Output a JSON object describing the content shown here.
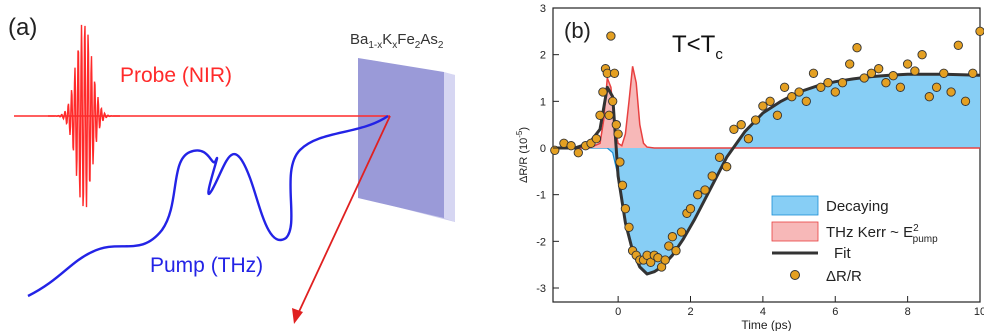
{
  "panel_a": {
    "label": "(a)",
    "material": "Ba1-xKxFe2As2",
    "material_parts": [
      {
        "t": "Ba",
        "s": "n"
      },
      {
        "t": "1-x",
        "s": "sub"
      },
      {
        "t": "K",
        "s": "n"
      },
      {
        "t": "x",
        "s": "sub"
      },
      {
        "t": "Fe",
        "s": "n"
      },
      {
        "t": "2",
        "s": "sub"
      },
      {
        "t": "As",
        "s": "n"
      },
      {
        "t": "2",
        "s": "sub"
      }
    ],
    "probe_label": "Probe (NIR)",
    "pump_label": "Pump (THz)",
    "colors": {
      "probe": "#ff2a2a",
      "pump": "#2323e6",
      "sample": "#9a9ad8",
      "arrow": "#e02020"
    }
  },
  "panel_b": {
    "label": "(b)",
    "condition_main": "T<T",
    "condition_sub": "c"
  },
  "chart_data": {
    "type": "scatter",
    "xlabel": "Time (ps)",
    "ylabel": "ΔR/R (10⁻⁵)",
    "ylabel_main": "ΔR/R (10",
    "ylabel_sup": "-5",
    "ylabel_close": ")",
    "xlim": [
      -1.8,
      10
    ],
    "ylim": [
      -3.3,
      3
    ],
    "xticks": [
      0,
      2,
      4,
      6,
      8,
      10
    ],
    "xtick_labels": [
      "0",
      "2",
      "4",
      "6",
      "8",
      "10"
    ],
    "yticks": [
      -3,
      -2,
      -1,
      0,
      1,
      2,
      3
    ],
    "ytick_labels": [
      "-3",
      "-2",
      "-1",
      "0",
      "1",
      "2",
      "3"
    ],
    "grid": false,
    "legend_position": "lower-right",
    "legend": {
      "decaying": "Decaying",
      "thz_kerr": "THz Kerr ~ E",
      "thz_kerr_sup": "2",
      "thz_kerr_sub": "pump",
      "fit": "Fit",
      "data": "ΔR/R"
    },
    "colors": {
      "decaying_fill": "#87cef5",
      "decaying_edge": "#1a8fd6",
      "kerr_fill": "#f7b8b8",
      "kerr_line": "#e84040",
      "fit_line": "#333333",
      "marker_fill": "#e4a022",
      "marker_edge": "#333333"
    },
    "series": [
      {
        "name": "Fit",
        "x": [
          -1.8,
          -1.2,
          -0.8,
          -0.5,
          -0.3,
          -0.15,
          0,
          0.2,
          0.4,
          0.6,
          0.8,
          1.0,
          1.2,
          1.5,
          1.8,
          2.1,
          2.5,
          3.0,
          3.5,
          4.0,
          4.5,
          5.0,
          5.5,
          6.0,
          6.5,
          7.0,
          7.5,
          8.0,
          8.5,
          9.0,
          9.5,
          10
        ],
        "y": [
          0,
          0,
          0.1,
          0.4,
          1.3,
          1.1,
          -0.6,
          -1.6,
          -2.2,
          -2.55,
          -2.7,
          -2.65,
          -2.55,
          -2.3,
          -1.95,
          -1.55,
          -0.95,
          -0.2,
          0.35,
          0.75,
          1.0,
          1.2,
          1.33,
          1.42,
          1.48,
          1.53,
          1.56,
          1.58,
          1.58,
          1.58,
          1.57,
          1.56
        ]
      },
      {
        "name": "Decaying",
        "x": [
          -1.8,
          -1.0,
          -0.5,
          -0.3,
          -0.15,
          0,
          0.2,
          0.4,
          0.6,
          0.8,
          1.0,
          1.2,
          1.5,
          1.8,
          2.1,
          2.5,
          3.0,
          3.5,
          4.0,
          4.5,
          5.0,
          5.5,
          6.0,
          6.5,
          7.0,
          7.5,
          8.0,
          8.5,
          9.0,
          9.5,
          10
        ],
        "y": [
          0,
          0,
          0,
          0,
          -0.1,
          -0.6,
          -1.6,
          -2.2,
          -2.55,
          -2.7,
          -2.65,
          -2.55,
          -2.3,
          -1.95,
          -1.55,
          -0.95,
          -0.2,
          0.35,
          0.75,
          1.0,
          1.2,
          1.33,
          1.42,
          1.48,
          1.53,
          1.56,
          1.58,
          1.58,
          1.58,
          1.57,
          1.56
        ]
      },
      {
        "name": "THz Kerr",
        "x": [
          -1.8,
          -0.8,
          -0.5,
          -0.4,
          -0.3,
          -0.2,
          -0.1,
          0,
          0.1,
          0.2,
          0.3,
          0.4,
          0.5,
          0.6,
          0.7,
          0.8,
          1.0,
          1.5,
          3,
          6,
          10
        ],
        "y": [
          0,
          0,
          0.1,
          0.6,
          1.5,
          1.3,
          0.5,
          0.1,
          0.05,
          0.3,
          1.0,
          1.75,
          1.4,
          0.5,
          0.1,
          0.02,
          0,
          0,
          0,
          0,
          0
        ]
      },
      {
        "name": "ΔR/R",
        "x": [
          -1.75,
          -1.5,
          -1.3,
          -1.1,
          -0.9,
          -0.75,
          -0.6,
          -0.5,
          -0.42,
          -0.35,
          -0.3,
          -0.25,
          -0.2,
          -0.15,
          -0.1,
          -0.05,
          0.0,
          0.05,
          0.12,
          0.2,
          0.3,
          0.4,
          0.5,
          0.6,
          0.7,
          0.8,
          0.9,
          1.0,
          1.1,
          1.2,
          1.3,
          1.4,
          1.5,
          1.6,
          1.75,
          1.9,
          2.0,
          2.2,
          2.4,
          2.6,
          2.8,
          3.0,
          3.2,
          3.4,
          3.6,
          3.8,
          4.0,
          4.2,
          4.4,
          4.6,
          4.8,
          5.0,
          5.2,
          5.4,
          5.6,
          5.8,
          6.0,
          6.2,
          6.4,
          6.6,
          6.8,
          7.0,
          7.2,
          7.4,
          7.6,
          7.8,
          8.0,
          8.2,
          8.4,
          8.6,
          8.8,
          9.0,
          9.2,
          9.4,
          9.6,
          9.8,
          10.0
        ],
        "y": [
          -0.05,
          0.1,
          0.05,
          -0.1,
          0.05,
          0.1,
          0.2,
          0.7,
          1.2,
          1.7,
          1.6,
          0.7,
          2.4,
          1.0,
          1.6,
          0.5,
          0.3,
          -0.3,
          -0.8,
          -1.3,
          -1.7,
          -2.2,
          -2.3,
          -2.4,
          -2.4,
          -2.3,
          -2.45,
          -2.3,
          -2.35,
          -2.55,
          -2.4,
          -2.1,
          -1.9,
          -2.2,
          -1.8,
          -1.4,
          -1.3,
          -1.0,
          -0.9,
          -0.6,
          -0.2,
          -0.4,
          0.4,
          0.5,
          0.2,
          0.6,
          0.9,
          1.0,
          0.7,
          1.3,
          1.1,
          1.2,
          1.0,
          1.6,
          1.3,
          1.4,
          1.2,
          1.4,
          1.8,
          2.15,
          1.5,
          1.6,
          1.7,
          1.4,
          1.55,
          1.3,
          1.8,
          1.65,
          2.0,
          1.1,
          1.3,
          1.6,
          1.2,
          2.2,
          1.0,
          1.6,
          2.5
        ]
      }
    ]
  }
}
